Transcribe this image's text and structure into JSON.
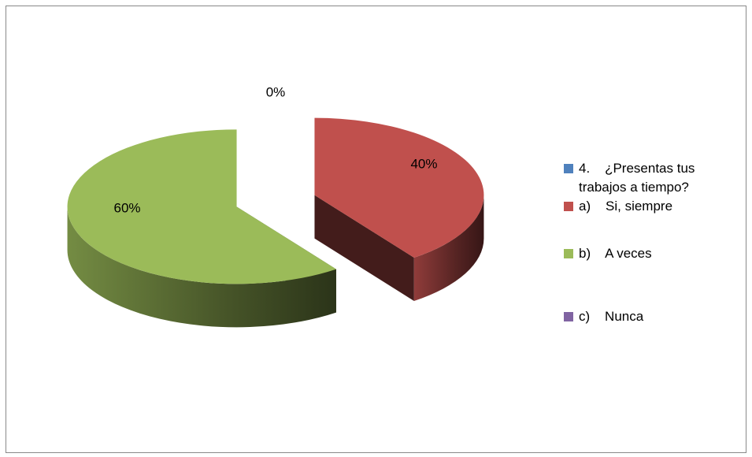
{
  "chart_data": {
    "type": "pie",
    "categories": [
      "4.    ¿Presentas tus trabajos a tiempo?",
      "a)    Si, siempre",
      "b)    A veces",
      "c)    Nunca"
    ],
    "values": [
      0,
      40,
      60,
      0
    ],
    "value_labels": [
      "0%",
      "40%",
      "60%",
      null
    ],
    "colors": [
      "#4f81bd",
      "#c0504d",
      "#9bbb59",
      "#8064a2"
    ],
    "legend": "right"
  }
}
